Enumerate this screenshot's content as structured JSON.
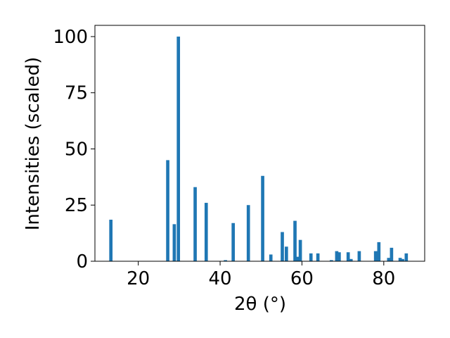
{
  "chart_data": {
    "type": "bar",
    "x_label": "2θ (°)",
    "y_label": "Intensities (scaled)",
    "x": [
      13.3,
      27.2,
      28.8,
      29.8,
      33.9,
      36.6,
      41.3,
      43.2,
      46.9,
      50.4,
      52.4,
      55.2,
      56.2,
      58.3,
      59.0,
      59.6,
      62.2,
      63.9,
      67.2,
      68.5,
      69.1,
      71.3,
      72.0,
      74.0,
      78.0,
      78.8,
      81.2,
      81.9,
      84.0,
      84.6,
      85.5
    ],
    "values": [
      18.5,
      45,
      16.5,
      100,
      33,
      26,
      0.5,
      17,
      25,
      38,
      3,
      13,
      6.5,
      18,
      2,
      9.5,
      3.5,
      3.5,
      0.5,
      4.5,
      4,
      4,
      1,
      4.5,
      4.5,
      8.5,
      1.5,
      6,
      1.5,
      1,
      3.5
    ],
    "color": "#1f77b4",
    "xlim": [
      9.4,
      90
    ],
    "ylim": [
      0,
      105
    ],
    "xticks": [
      20,
      40,
      60,
      80
    ],
    "yticks": [
      0,
      25,
      50,
      75,
      100
    ]
  }
}
